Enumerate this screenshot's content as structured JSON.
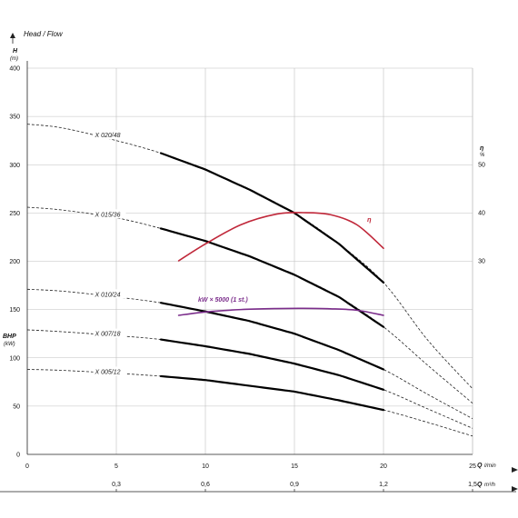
{
  "chart_data": {
    "type": "line",
    "title": "Head / Flow",
    "y_axis": {
      "label": "H",
      "unit": "(m)",
      "range": [
        0,
        400
      ],
      "ticks": [
        "0",
        "50",
        "100",
        "150",
        "200",
        "250",
        "300",
        "350",
        "400"
      ]
    },
    "bhp_axis": {
      "label": "BHP",
      "unit": "(kW)"
    },
    "x_axis": {
      "label": "Q",
      "unit": "l/min",
      "range": [
        0,
        25
      ],
      "ticks": [
        "0",
        "5",
        "10",
        "15",
        "20",
        "25"
      ]
    },
    "x2_axis": {
      "label": "Q",
      "unit": "m³/h",
      "ticks": [
        "0,3",
        "0,6",
        "0,9",
        "1,2",
        "1,5"
      ]
    },
    "eta_axis": {
      "label": "η",
      "unit": "%",
      "ticks": [
        "30",
        "40",
        "50"
      ]
    },
    "series": [
      {
        "name": "X 020/48",
        "x": [
          0,
          2,
          5,
          7.5,
          10,
          12.5,
          15,
          17.5,
          20,
          22.5,
          25
        ],
        "y": [
          342,
          338,
          325,
          312,
          295,
          274,
          250,
          218,
          178,
          118,
          68
        ]
      },
      {
        "name": "X 015/36",
        "x": [
          0,
          2,
          5,
          7.5,
          10,
          12.5,
          15,
          17.5,
          20,
          22.5,
          25
        ],
        "y": [
          256,
          253,
          245,
          234,
          221,
          205,
          186,
          163,
          132,
          92,
          53
        ]
      },
      {
        "name": "X 010/24",
        "x": [
          0,
          2,
          5,
          7.5,
          10,
          12.5,
          15,
          17.5,
          20,
          22.5,
          25
        ],
        "y": [
          171,
          169,
          163,
          157,
          148,
          138,
          125,
          108,
          88,
          62,
          37
        ]
      },
      {
        "name": "X 007/18",
        "x": [
          0,
          2,
          5,
          7.5,
          10,
          12.5,
          15,
          17.5,
          20,
          22.5,
          25
        ],
        "y": [
          129,
          127,
          123,
          119,
          112,
          104,
          94,
          82,
          67,
          47,
          27
        ]
      },
      {
        "name": "X 005/12",
        "x": [
          0,
          2,
          5,
          7.5,
          10,
          12.5,
          15,
          17.5,
          20,
          22.5,
          25
        ],
        "y": [
          88,
          87,
          84,
          81,
          77,
          71,
          65,
          56,
          46,
          33,
          19
        ]
      }
    ],
    "operating_range": [
      7.5,
      20
    ],
    "efficiency": {
      "name": "η",
      "x": [
        8.5,
        10,
        12,
        14,
        15.5,
        17,
        18.5,
        20
      ],
      "y": [
        30,
        33.5,
        37.5,
        39.7,
        40,
        39.6,
        37.5,
        32.6
      ]
    },
    "power": {
      "name": "kW × 5000 (1 st.)",
      "x": [
        8.5,
        10,
        12,
        14,
        15.5,
        17,
        18.5,
        20
      ],
      "y": [
        144,
        147.5,
        150,
        151,
        151.2,
        150.8,
        149.3,
        144
      ]
    }
  }
}
